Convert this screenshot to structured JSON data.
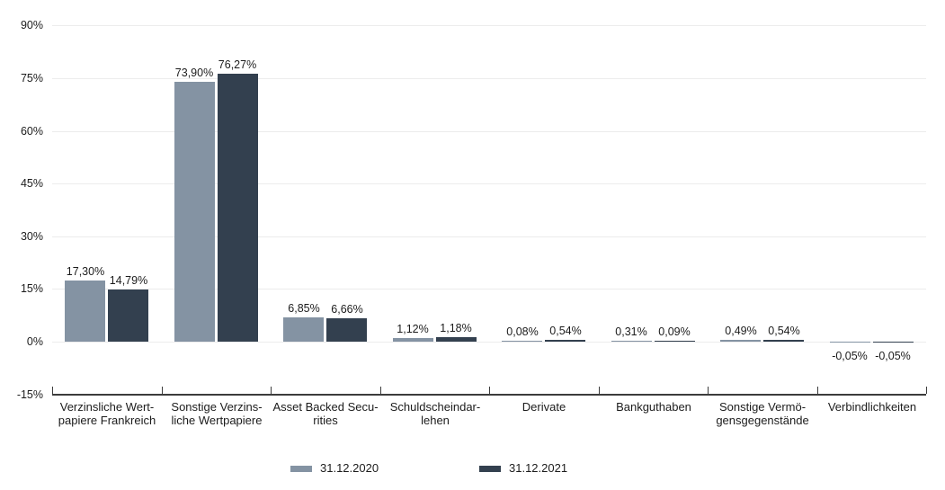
{
  "chart_data": {
    "type": "bar",
    "title": "",
    "xlabel": "",
    "ylabel": "",
    "ylim": [
      -15,
      90
    ],
    "grid": true,
    "legend_position": "bottom",
    "y_ticks": [
      {
        "label": "90%",
        "value": 90
      },
      {
        "label": "75%",
        "value": 75
      },
      {
        "label": "60%",
        "value": 60
      },
      {
        "label": "45%",
        "value": 45
      },
      {
        "label": "30%",
        "value": 30
      },
      {
        "label": "15%",
        "value": 15
      },
      {
        "label": "0%",
        "value": 0
      },
      {
        "label": "-15%",
        "value": -15
      }
    ],
    "categories": [
      "Verzinsliche Wert-\npapiere Frankreich",
      "Sonstige Verzins-\nliche Wertpapiere",
      "Asset Backed Secu-\nrities",
      "Schuldscheindar-\nlehen",
      "Derivate",
      "Bankguthaben",
      "Sonstige Vermö-\ngensgegenstände",
      "Verbindlichkeiten"
    ],
    "series": [
      {
        "name": "31.12.2020",
        "color": "#8493a3",
        "values": [
          17.3,
          73.9,
          6.85,
          1.12,
          0.08,
          0.31,
          0.49,
          -0.05
        ],
        "labels": [
          "17,30%",
          "73,90%",
          "6,85%",
          "1,12%",
          "0,08%",
          "0,31%",
          "0,49%",
          "-0,05%"
        ]
      },
      {
        "name": "31.12.2021",
        "color": "#33404f",
        "values": [
          14.79,
          76.27,
          6.66,
          1.18,
          0.54,
          0.09,
          0.54,
          -0.05
        ],
        "labels": [
          "14,79%",
          "76,27%",
          "6,66%",
          "1,18%",
          "0,54%",
          "0,09%",
          "0,54%",
          "-0,05%"
        ]
      }
    ],
    "colors": {
      "grid": "#ececec",
      "axis": "#3c3c3c",
      "text": "#1c1c1c",
      "background": "#ffffff"
    }
  }
}
